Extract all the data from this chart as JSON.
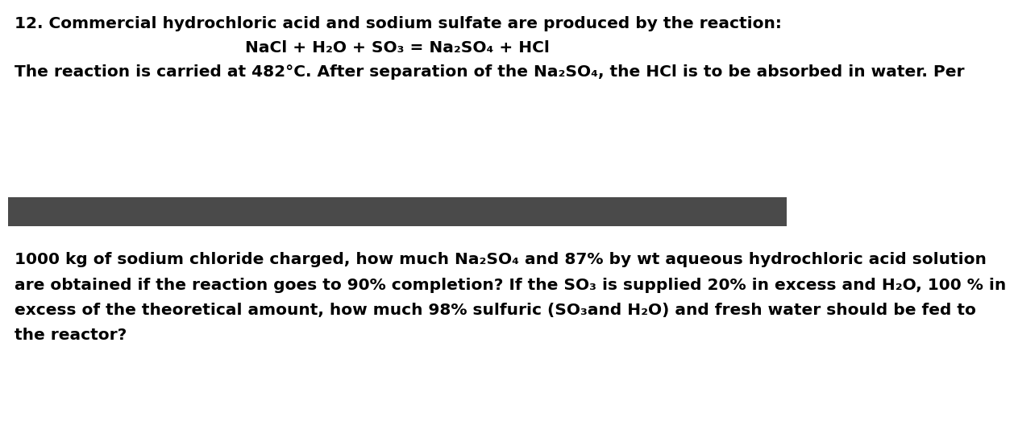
{
  "bg_color": "#ffffff",
  "divider_color": "#4a4a4a",
  "text_color": "#000000",
  "line1": "12. Commercial hydrochloric acid and sodium sulfate are produced by the reaction:",
  "line2": "NaCl + H₂O + SO₃ = Na₂SO₄ + HCl",
  "line3": "The reaction is carried at 482°C. After separation of the Na₂SO₄, the HCl is to be absorbed in water. Per",
  "bottom_line1": "1000 kg of sodium chloride charged, how much Na₂SO₄ and 87% by wt aqueous hydrochloric acid solution",
  "bottom_line2": "are obtained if the reaction goes to 90% completion? If the SO₃ is supplied 20% in excess and H₂O, 100 % in",
  "bottom_line3": "excess of the theoretical amount, how much 98% sulfuric (SO₃and H₂O) and fresh water should be fed to",
  "bottom_line4": "the reactor?",
  "fontsize": 14.5,
  "fontweight": "bold",
  "fontfamily": "DejaVu Sans"
}
